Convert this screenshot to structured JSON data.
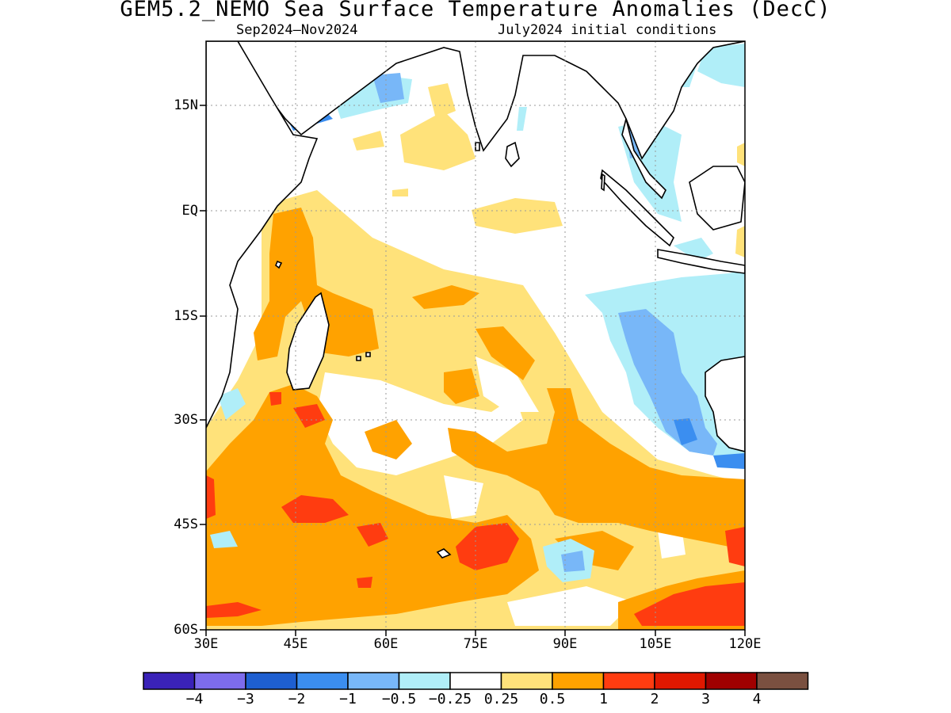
{
  "title": "GEM5.2_NEMO Sea Surface Temperature Anomalies (DecC)",
  "subtitle_left": "Sep2024–Nov2024",
  "subtitle_right": "July2024 initial conditions",
  "map": {
    "lon_range": [
      30,
      120
    ],
    "lat_range": [
      -60,
      24
    ],
    "lat_ticks": [
      "15N",
      "EQ",
      "15S",
      "30S",
      "45S",
      "60S"
    ],
    "lon_ticks": [
      "30E",
      "45E",
      "60E",
      "75E",
      "90E",
      "105E",
      "120E"
    ],
    "grid": true
  },
  "colorbar": {
    "labels": [
      "−4",
      "−3",
      "−2",
      "−1",
      "−0.5",
      "−0.25",
      "0.25",
      "0.5",
      "1",
      "2",
      "3",
      "4"
    ],
    "colors": [
      "#3a22b8",
      "#7d6cec",
      "#1e5fd0",
      "#3b8ef0",
      "#78b7f8",
      "#b0eef8",
      "#ffffff",
      "#ffe27a",
      "#ffa200",
      "#ff3c10",
      "#e01800",
      "#a00000",
      "#7a5040"
    ]
  }
}
